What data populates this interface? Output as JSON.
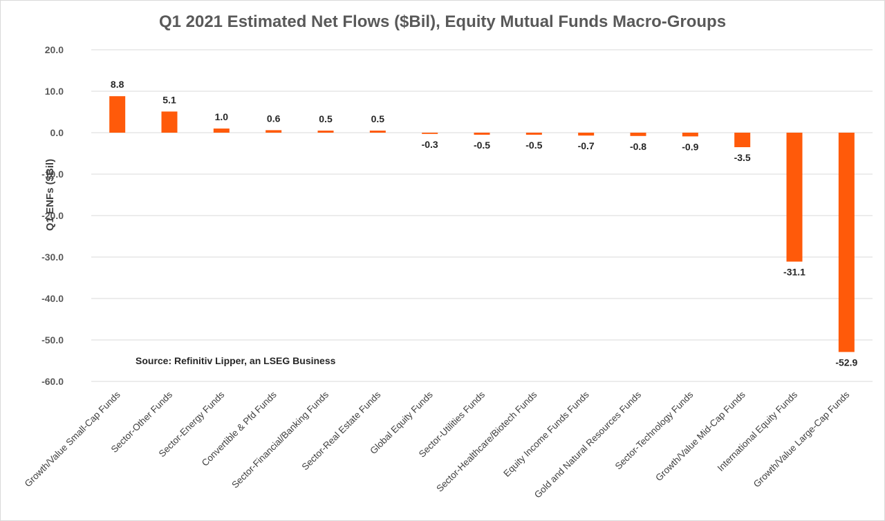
{
  "chart_data": {
    "type": "bar",
    "title": "Q1 2021 Estimated Net Flows ($Bil), Equity Mutual Funds Macro-Groups",
    "xlabel": "",
    "ylabel": "Q1 ENFs ($Bil)",
    "ylim": [
      -60,
      20
    ],
    "ytick_step": 10,
    "yticks": [
      "20.0",
      "10.0",
      "0.0",
      "-10.0",
      "-20.0",
      "-30.0",
      "-40.0",
      "-50.0",
      "-60.0"
    ],
    "grid": true,
    "bar_color": "#ff5a0a",
    "source": "Source: Refinitiv Lipper, an LSEG Business",
    "categories": [
      "Growth/Value Small-Cap Funds",
      "Sector-Other Funds",
      "Sector-Energy Funds",
      "Convertible & Pfd Funds",
      "Sector-Financial/Banking Funds",
      "Sector-Real Estate Funds",
      "Global Equity Funds",
      "Sector-Utilities Funds",
      "Sector-Healthcare/Biotech Funds",
      "Equity Income Funds Funds",
      "Gold and Natural Resources Funds",
      "Sector-Technology Funds",
      "Growth/Value Mid-Cap Funds",
      "International Equity Funds",
      "Growth/Value Large-Cap Funds"
    ],
    "values": [
      8.8,
      5.1,
      1.0,
      0.6,
      0.5,
      0.5,
      -0.3,
      -0.5,
      -0.5,
      -0.7,
      -0.8,
      -0.9,
      -3.5,
      -31.1,
      -52.9
    ],
    "value_labels": [
      "8.8",
      "5.1",
      "1.0",
      "0.6",
      "0.5",
      "0.5",
      "-0.3",
      "-0.5",
      "-0.5",
      "-0.7",
      "-0.8",
      "-0.9",
      "-3.5",
      "-31.1",
      "-52.9"
    ]
  }
}
